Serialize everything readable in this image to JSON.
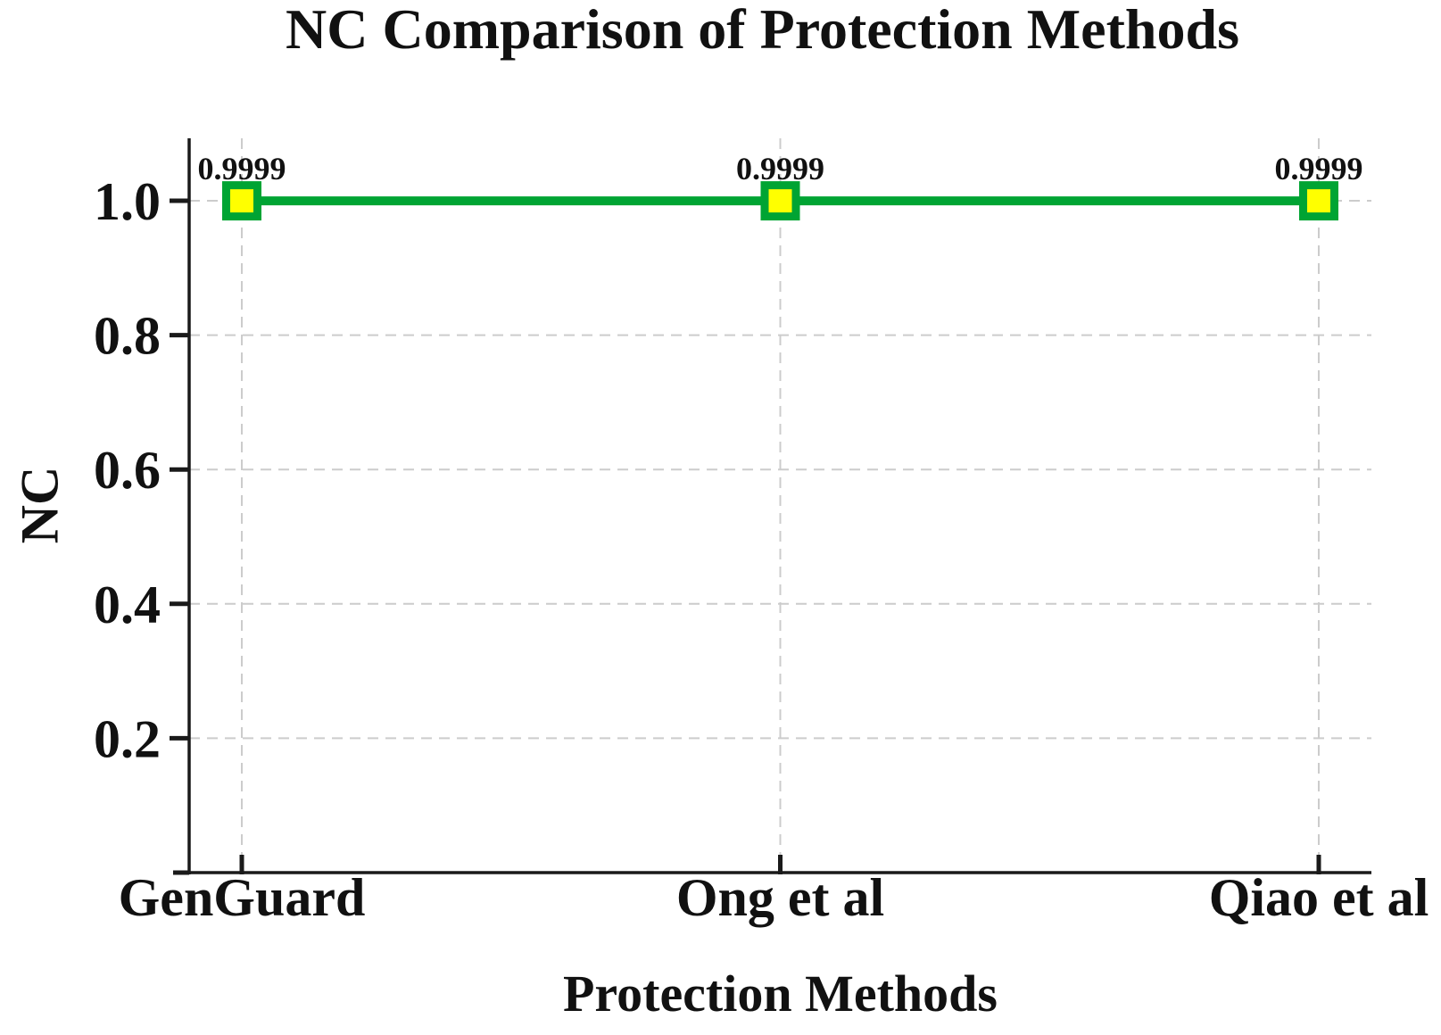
{
  "chart_data": {
    "type": "line",
    "title": "NC Comparison of Protection Methods",
    "xlabel": "Protection Methods",
    "ylabel": "NC",
    "categories": [
      "GenGuard",
      "Ong et al",
      "Qiao et al"
    ],
    "series": [
      {
        "name": "NC",
        "values": [
          0.9999,
          0.9999,
          0.9999
        ]
      }
    ],
    "point_labels": [
      "0.9999",
      "0.9999",
      "0.9999"
    ],
    "yticks": [
      0.2,
      0.4,
      0.6,
      0.8,
      1.0
    ],
    "ytick_labels": [
      "0.2",
      "0.4",
      "0.6",
      "0.8",
      "1.0"
    ],
    "ylim": [
      0,
      1.093
    ],
    "grid": "dashed, horizontal and vertical",
    "legend": "none",
    "colors": {
      "line": "#00a433",
      "marker_fill": "#ffff00",
      "marker_edge": "#00a433",
      "gridline": "#cccccc",
      "axis": "#1a1a1a",
      "text": "#111111",
      "background": "#ffffff"
    },
    "marker": "square"
  }
}
